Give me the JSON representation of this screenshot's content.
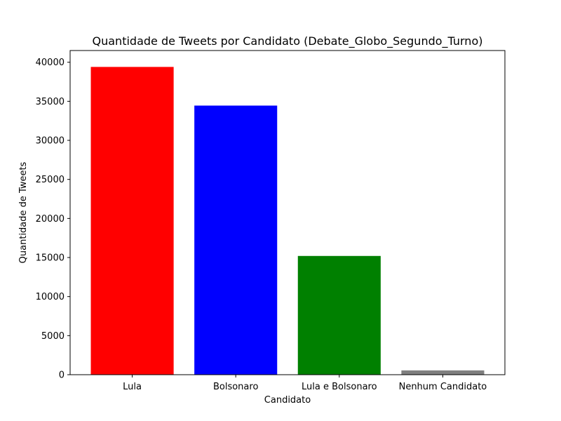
{
  "chart_data": {
    "type": "bar",
    "title": "Quantidade de Tweets por Candidato (Debate_Globo_Segundo_Turno)",
    "xlabel": "Candidato",
    "ylabel": "Quantidade de Tweets",
    "categories": [
      "Lula",
      "Bolsonaro",
      "Lula e Bolsonaro",
      "Nenhum Candidato"
    ],
    "values": [
      39400,
      34450,
      15200,
      550
    ],
    "colors": [
      "#ff0000",
      "#0000ff",
      "#008000",
      "#808080"
    ],
    "ylim": [
      0,
      41500
    ],
    "yticks": [
      0,
      5000,
      10000,
      15000,
      20000,
      25000,
      30000,
      35000,
      40000
    ],
    "grid": false,
    "legend": false
  }
}
